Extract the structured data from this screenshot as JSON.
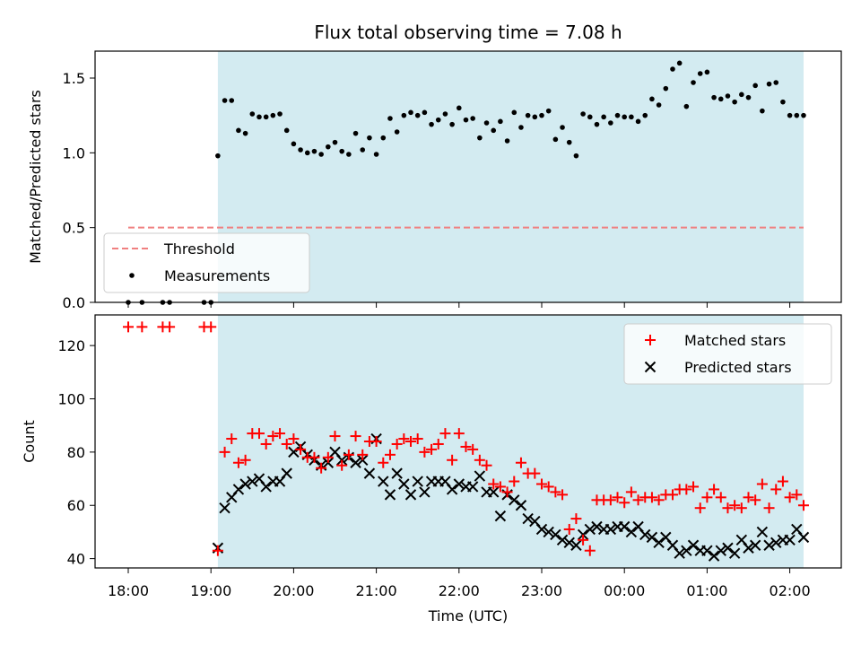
{
  "chart_data": [
    {
      "type": "scatter",
      "title": "Flux total observing time = 7.08 h",
      "xlabel": "",
      "ylabel": "Matched/Predicted stars",
      "ylim": [
        0,
        1.68
      ],
      "yticks": [
        "0.0",
        "0.5",
        "1.0",
        "1.5"
      ],
      "shaded_x_range": [
        "19:05",
        "02:10"
      ],
      "legend": {
        "placement": "lower-left",
        "entries": [
          "Threshold",
          "Measurements"
        ]
      },
      "threshold": {
        "name": "Threshold",
        "value": 0.5,
        "x_from": "18:00",
        "x_to": "02:10",
        "color": "#f08080",
        "style": "dashed"
      },
      "series": [
        {
          "name": "Measurements",
          "marker": "dot",
          "color": "#000000",
          "x": [
            "18:00",
            "18:10",
            "18:25",
            "18:30",
            "18:55",
            "19:00",
            "19:05",
            "19:10",
            "19:15",
            "19:20",
            "19:25",
            "19:30",
            "19:35",
            "19:40",
            "19:45",
            "19:50",
            "19:55",
            "20:00",
            "20:05",
            "20:10",
            "20:15",
            "20:20",
            "20:25",
            "20:30",
            "20:35",
            "20:40",
            "20:45",
            "20:50",
            "20:55",
            "21:00",
            "21:05",
            "21:10",
            "21:15",
            "21:20",
            "21:25",
            "21:30",
            "21:35",
            "21:40",
            "21:45",
            "21:50",
            "21:55",
            "22:00",
            "22:05",
            "22:10",
            "22:15",
            "22:20",
            "22:25",
            "22:30",
            "22:35",
            "22:40",
            "22:45",
            "22:50",
            "22:55",
            "23:00",
            "23:05",
            "23:10",
            "23:15",
            "23:20",
            "23:25",
            "23:30",
            "23:35",
            "23:40",
            "23:45",
            "23:50",
            "23:55",
            "00:00",
            "00:05",
            "00:10",
            "00:15",
            "00:20",
            "00:25",
            "00:30",
            "00:35",
            "00:40",
            "00:45",
            "00:50",
            "00:55",
            "01:00",
            "01:05",
            "01:10",
            "01:15",
            "01:20",
            "01:25",
            "01:30",
            "01:35",
            "01:40",
            "01:45",
            "01:50",
            "01:55",
            "02:00",
            "02:05",
            "02:10"
          ],
          "y": [
            0,
            0,
            0,
            0,
            0,
            0,
            0.98,
            1.35,
            1.35,
            1.15,
            1.13,
            1.26,
            1.24,
            1.24,
            1.25,
            1.26,
            1.15,
            1.06,
            1.02,
            1.0,
            1.01,
            0.99,
            1.04,
            1.07,
            1.01,
            0.99,
            1.13,
            1.02,
            1.1,
            0.99,
            1.1,
            1.23,
            1.14,
            1.25,
            1.27,
            1.25,
            1.27,
            1.19,
            1.22,
            1.26,
            1.19,
            1.3,
            1.22,
            1.23,
            1.1,
            1.2,
            1.15,
            1.21,
            1.08,
            1.27,
            1.17,
            1.25,
            1.24,
            1.25,
            1.28,
            1.09,
            1.17,
            1.07,
            0.98,
            1.26,
            1.24,
            1.19,
            1.24,
            1.2,
            1.25,
            1.24,
            1.24,
            1.21,
            1.25,
            1.36,
            1.32,
            1.43,
            1.56,
            1.6,
            1.31,
            1.47,
            1.53,
            1.54,
            1.37,
            1.36,
            1.38,
            1.34,
            1.39,
            1.37,
            1.45,
            1.28,
            1.46,
            1.47,
            1.34,
            1.25,
            1.25,
            1.25
          ]
        }
      ]
    },
    {
      "type": "scatter",
      "title": "",
      "xlabel": "Time (UTC)",
      "ylabel": "Count",
      "ylim": [
        36.5,
        131.5
      ],
      "yticks": [
        "40",
        "60",
        "80",
        "100",
        "120"
      ],
      "xticks": [
        "18:00",
        "19:00",
        "20:00",
        "21:00",
        "22:00",
        "23:00",
        "00:00",
        "01:00",
        "02:00"
      ],
      "shaded_x_range": [
        "19:05",
        "02:10"
      ],
      "legend": {
        "placement": "top-right",
        "entries": [
          "Matched stars",
          "Predicted stars"
        ]
      },
      "series": [
        {
          "name": "Matched stars",
          "marker": "plus",
          "color": "#ff0000",
          "x": [
            "18:00",
            "18:10",
            "18:25",
            "18:30",
            "18:55",
            "19:00",
            "19:05",
            "19:10",
            "19:15",
            "19:20",
            "19:25",
            "19:30",
            "19:35",
            "19:40",
            "19:45",
            "19:50",
            "19:55",
            "20:00",
            "20:05",
            "20:10",
            "20:15",
            "20:20",
            "20:25",
            "20:30",
            "20:35",
            "20:40",
            "20:45",
            "20:50",
            "20:55",
            "21:00",
            "21:05",
            "21:10",
            "21:15",
            "21:20",
            "21:25",
            "21:30",
            "21:35",
            "21:40",
            "21:45",
            "21:50",
            "21:55",
            "22:00",
            "22:05",
            "22:10",
            "22:15",
            "22:20",
            "22:25",
            "22:30",
            "22:35",
            "22:40",
            "22:45",
            "22:50",
            "22:55",
            "23:00",
            "23:05",
            "23:10",
            "23:15",
            "23:20",
            "23:25",
            "23:30",
            "23:35",
            "23:40",
            "23:45",
            "23:50",
            "23:55",
            "00:00",
            "00:05",
            "00:10",
            "00:15",
            "00:20",
            "00:25",
            "00:30",
            "00:35",
            "00:40",
            "00:45",
            "00:50",
            "00:55",
            "01:00",
            "01:05",
            "01:10",
            "01:15",
            "01:20",
            "01:25",
            "01:30",
            "01:35",
            "01:40",
            "01:45",
            "01:50",
            "01:55",
            "02:00",
            "02:05",
            "02:10"
          ],
          "y": [
            127,
            127,
            127,
            127,
            127,
            127,
            43,
            80,
            85,
            76,
            77,
            87,
            87,
            83,
            86,
            87,
            83,
            85,
            81,
            78,
            78,
            74,
            78,
            86,
            75,
            79,
            86,
            79,
            84,
            84,
            76,
            79,
            83,
            85,
            84,
            85,
            80,
            81,
            83,
            87,
            77,
            87,
            82,
            81,
            77,
            75,
            68,
            67,
            65,
            69,
            76,
            72,
            72,
            68,
            67,
            65,
            64,
            51,
            55,
            47,
            43,
            62,
            62,
            62,
            63,
            61,
            65,
            62,
            63,
            63,
            62,
            64,
            64,
            66,
            66,
            67,
            59,
            63,
            66,
            63,
            59,
            60,
            59,
            63,
            62,
            68,
            59,
            66,
            69,
            63,
            64,
            60
          ]
        },
        {
          "name": "Predicted stars",
          "marker": "x",
          "color": "#000000",
          "x": [
            "19:05",
            "19:10",
            "19:15",
            "19:20",
            "19:25",
            "19:30",
            "19:35",
            "19:40",
            "19:45",
            "19:50",
            "19:55",
            "20:00",
            "20:05",
            "20:10",
            "20:15",
            "20:20",
            "20:25",
            "20:30",
            "20:35",
            "20:40",
            "20:45",
            "20:50",
            "20:55",
            "21:00",
            "21:05",
            "21:10",
            "21:15",
            "21:20",
            "21:25",
            "21:30",
            "21:35",
            "21:40",
            "21:45",
            "21:50",
            "21:55",
            "22:00",
            "22:05",
            "22:10",
            "22:15",
            "22:20",
            "22:25",
            "22:30",
            "22:35",
            "22:40",
            "22:45",
            "22:50",
            "22:55",
            "23:00",
            "23:05",
            "23:10",
            "23:15",
            "23:20",
            "23:25",
            "23:30",
            "23:35",
            "23:40",
            "23:45",
            "23:50",
            "23:55",
            "00:00",
            "00:05",
            "00:10",
            "00:15",
            "00:20",
            "00:25",
            "00:30",
            "00:35",
            "00:40",
            "00:45",
            "00:50",
            "00:55",
            "01:00",
            "01:05",
            "01:10",
            "01:15",
            "01:20",
            "01:25",
            "01:30",
            "01:35",
            "01:40",
            "01:45",
            "01:50",
            "01:55",
            "02:00",
            "02:05",
            "02:10"
          ],
          "y": [
            44,
            59,
            63,
            66,
            68,
            69,
            70,
            67,
            69,
            69,
            72,
            80,
            82,
            79,
            77,
            75,
            76,
            80,
            77,
            78,
            76,
            77,
            72,
            85,
            69,
            64,
            72,
            68,
            64,
            69,
            65,
            69,
            69,
            69,
            66,
            68,
            67,
            67,
            71,
            65,
            65,
            56,
            64,
            62,
            60,
            55,
            54,
            51,
            50,
            49,
            47,
            46,
            45,
            49,
            51,
            52,
            51,
            51,
            52,
            52,
            50,
            52,
            49,
            48,
            46,
            48,
            45,
            42,
            43,
            45,
            43,
            43,
            41,
            43,
            44,
            42,
            47,
            44,
            45,
            50,
            45,
            46,
            47,
            47,
            51,
            48
          ]
        }
      ]
    }
  ]
}
